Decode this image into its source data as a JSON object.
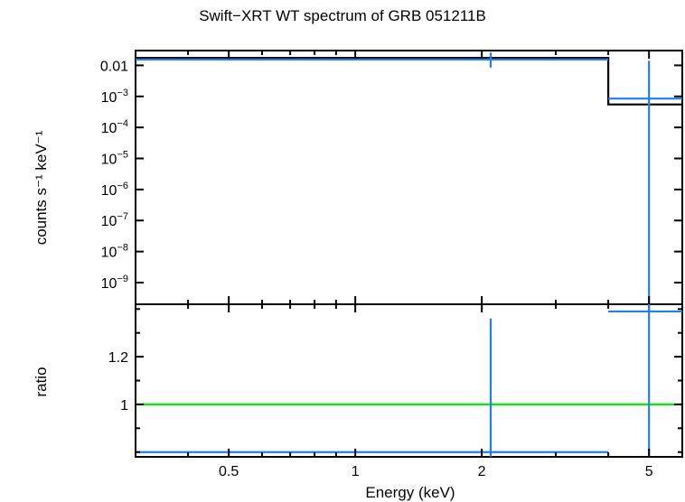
{
  "chart_data": [
    {
      "type": "line",
      "panel": "spectrum",
      "title": "Swift−XRT WT spectrum of GRB 051211B",
      "ylabel": "counts s⁻¹ keV⁻¹",
      "xlabel": "",
      "x_scale": "log",
      "y_scale": "log",
      "xlim": [
        0.3,
        6.0
      ],
      "ylim": [
        2e-10,
        0.03
      ],
      "y_ticks": [
        {
          "value": 0.01,
          "label": "0.01"
        },
        {
          "value": 0.001,
          "label": "10⁻³"
        },
        {
          "value": 0.0001,
          "label": "10⁻⁴"
        },
        {
          "value": 1e-05,
          "label": "10⁻⁵"
        },
        {
          "value": 1e-06,
          "label": "10⁻⁶"
        },
        {
          "value": 1e-07,
          "label": "10⁻⁷"
        },
        {
          "value": 1e-08,
          "label": "10⁻⁸"
        },
        {
          "value": 1e-09,
          "label": "10⁻⁹"
        }
      ],
      "series": [
        {
          "kind": "data",
          "color": "#1e7ff0",
          "points": [
            {
              "x": 2.1,
              "x_low": 0.3,
              "x_high": 4.0,
              "y": 0.0155,
              "y_low": 0.0085,
              "y_high": 0.026
            },
            {
              "x": 5.0,
              "x_low": 4.0,
              "x_high": 6.0,
              "y": 0.00085,
              "y_low": 2e-10,
              "y_high": 0.014
            }
          ]
        },
        {
          "kind": "model",
          "color": "#000000",
          "steps": [
            {
              "x_low": 0.3,
              "x_high": 4.0,
              "y": 0.0175
            },
            {
              "x_low": 4.0,
              "x_high": 6.0,
              "y": 0.00055
            }
          ]
        }
      ]
    },
    {
      "type": "line",
      "panel": "ratio",
      "xlabel": "Energy (keV)",
      "ylabel": "ratio",
      "x_scale": "log",
      "y_scale": "linear",
      "xlim": [
        0.3,
        6.0
      ],
      "ylim": [
        0.78,
        1.42
      ],
      "x_ticks": [
        {
          "value": 0.5,
          "label": "0.5"
        },
        {
          "value": 1,
          "label": "1"
        },
        {
          "value": 2,
          "label": "2"
        },
        {
          "value": 5,
          "label": "5"
        }
      ],
      "y_ticks": [
        {
          "value": 1,
          "label": "1"
        },
        {
          "value": 1.2,
          "label": "1.2"
        }
      ],
      "reference_line": {
        "y": 1,
        "color": "#00ee00"
      },
      "series": [
        {
          "kind": "data",
          "color": "#1e7ff0",
          "points": [
            {
              "x": 2.1,
              "x_low": 0.3,
              "x_high": 4.0,
              "y": 0.8,
              "y_low": 0.78,
              "y_high": 1.36
            },
            {
              "x": 5.0,
              "x_low": 4.0,
              "x_high": 6.0,
              "y": 1.39,
              "y_low": 0.78,
              "y_high": 1.42
            }
          ]
        }
      ]
    }
  ]
}
